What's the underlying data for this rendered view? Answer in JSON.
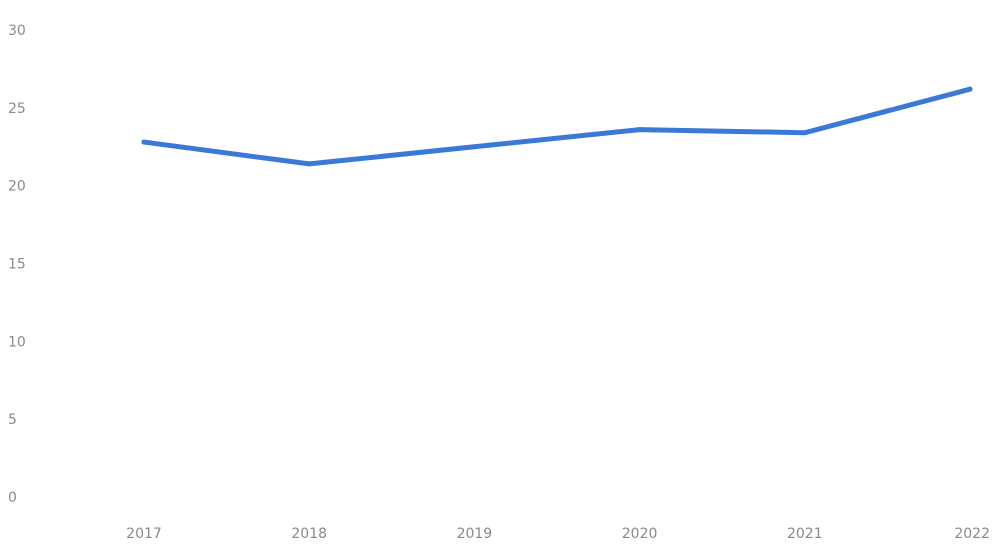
{
  "chart_data": {
    "type": "line",
    "categories": [
      "2017",
      "2018",
      "2019",
      "2020",
      "2021",
      "2022"
    ],
    "series": [
      {
        "values": [
          22.8,
          21.4,
          22.5,
          23.6,
          23.4,
          26.2
        ],
        "color": "#3a79d6"
      }
    ],
    "ylim": [
      0,
      30
    ],
    "yticks": [
      "0",
      "5",
      "10",
      "15",
      "20",
      "25",
      "30"
    ],
    "grid": false,
    "legend": "none",
    "title": "",
    "xlabel": "",
    "ylabel": ""
  }
}
